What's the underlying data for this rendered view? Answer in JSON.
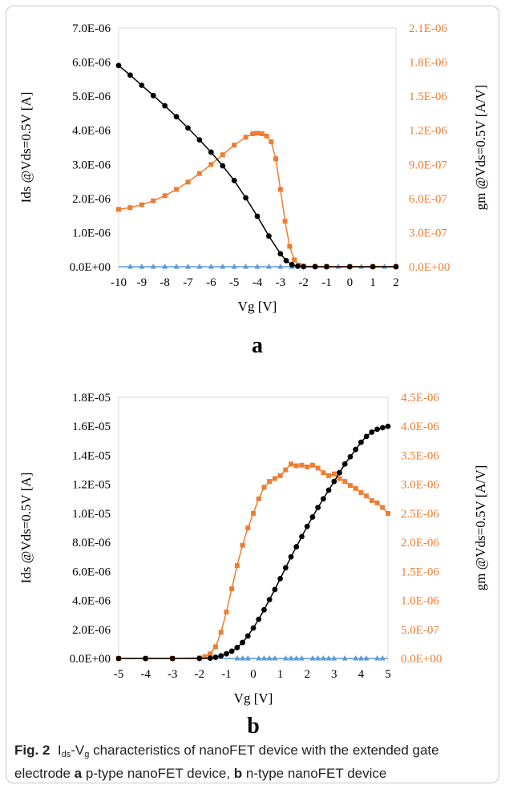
{
  "figure": {
    "caption": {
      "fig_label": "Fig. 2",
      "prefix": "I",
      "ids_subscript": "ds",
      "dash": "-V",
      "vg_subscript": "g",
      "text1": " characteristics of nanoFET device with the extended gate electrode ",
      "label_a": "a",
      "text2": " p-type nanoFET device, ",
      "label_b": "b",
      "text3": " n-type nanoFET device"
    }
  },
  "colors": {
    "ids": "#000000",
    "gm": "#ed7d31",
    "ig": "#5b9bd5",
    "axis": "#d9d9d9",
    "right_tick": "#ed7d31"
  },
  "chart_data": [
    {
      "type": "scatter",
      "panel_label": "a",
      "xlabel": "Vg [V]",
      "ylabel": "Ids @Vds=0.5V [A]",
      "y2label": "gm @Vds=0.5V [A/V]",
      "xlim": [
        -10,
        2
      ],
      "ylim": [
        0,
        7e-06
      ],
      "y2lim": [
        0,
        2.1e-06
      ],
      "xticks": [
        -10,
        -9,
        -8,
        -7,
        -6,
        -5,
        -4,
        -3,
        -2,
        -1,
        0,
        1,
        2
      ],
      "yticks": [
        0,
        1e-06,
        2e-06,
        3e-06,
        4e-06,
        5e-06,
        6e-06,
        7e-06
      ],
      "ytick_labels": [
        "0.0E+00",
        "1.0E-06",
        "2.0E-06",
        "3.0E-06",
        "4.0E-06",
        "5.0E-06",
        "6.0E-06",
        "7.0E-06"
      ],
      "y2ticks": [
        0,
        3e-07,
        6e-07,
        9e-07,
        1.2e-06,
        1.5e-06,
        1.8e-06,
        2.1e-06
      ],
      "y2tick_labels": [
        "0.0E+00",
        "3.0E-07",
        "6.0E-07",
        "9.0E-07",
        "1.2E-06",
        "1.5E-06",
        "1.8E-06",
        "2.1E-06"
      ],
      "series": [
        {
          "key": "ids",
          "axis": "left",
          "marker": "circle",
          "x": [
            -10,
            -9.5,
            -9,
            -8.5,
            -8,
            -7.5,
            -7,
            -6.5,
            -6,
            -5.5,
            -5,
            -4.5,
            -4,
            -3.5,
            -3,
            -2.75,
            -2.5,
            -2.25,
            -2,
            -1.5,
            -1,
            0,
            1,
            2
          ],
          "y": [
            5.9e-06,
            5.62e-06,
            5.32e-06,
            5.02e-06,
            4.72e-06,
            4.4e-06,
            4.07e-06,
            3.72e-06,
            3.36e-06,
            2.96e-06,
            2.53e-06,
            2.02e-06,
            1.48e-06,
            9e-07,
            3.8e-07,
            1.8e-07,
            6e-08,
            1.5e-08,
            4e-09,
            1e-09,
            0,
            0,
            0,
            0
          ]
        },
        {
          "key": "gm",
          "axis": "right",
          "marker": "square",
          "x": [
            -10,
            -9.5,
            -9,
            -8.5,
            -8,
            -7.5,
            -7,
            -6.5,
            -6,
            -5.5,
            -5,
            -4.5,
            -4.2,
            -4,
            -3.8,
            -3.6,
            -3.4,
            -3.2,
            -3,
            -2.8,
            -2.6,
            -2.4,
            -2.2,
            -2,
            -1.5,
            -1,
            0,
            1,
            2
          ],
          "y": [
            5.05e-07,
            5.2e-07,
            5.45e-07,
            5.8e-07,
            6.25e-07,
            6.8e-07,
            7.45e-07,
            8.2e-07,
            9e-07,
            9.85e-07,
            1.07e-06,
            1.14e-06,
            1.17e-06,
            1.175e-06,
            1.17e-06,
            1.15e-06,
            1.1e-06,
            9.5e-07,
            6.8e-07,
            4e-07,
            1.8e-07,
            6e-08,
            1.5e-08,
            5e-09,
            3e-09,
            2e-09,
            2e-09,
            2e-09,
            2e-09
          ]
        },
        {
          "key": "ig",
          "axis": "left",
          "marker": "triangle",
          "x": [
            -9.5,
            -9,
            -8.5,
            -8,
            -7.5,
            -7,
            -6.5,
            -6,
            -5.5,
            -5,
            -4.5,
            -4,
            -3.5,
            -3,
            -2.5,
            -2,
            -1.5,
            -1,
            -0.5,
            0,
            0.5,
            1,
            1.5
          ],
          "y": [
            0,
            0,
            0,
            0,
            0,
            0,
            0,
            0,
            0,
            0,
            0,
            0,
            0,
            0,
            0,
            0,
            0,
            0,
            0,
            0,
            0,
            0,
            0
          ]
        }
      ]
    },
    {
      "type": "scatter",
      "panel_label": "b",
      "xlabel": "Vg [V]",
      "ylabel": "Ids @Vds=0.5V [A]",
      "y2label": "gm @Vds=0.5V [A/V]",
      "xlim": [
        -5,
        5
      ],
      "ylim": [
        0,
        1.8e-05
      ],
      "y2lim": [
        0,
        4.5e-06
      ],
      "xticks": [
        -5,
        -4,
        -3,
        -2,
        -1,
        0,
        1,
        2,
        3,
        4,
        5
      ],
      "yticks": [
        0,
        2e-06,
        4e-06,
        6e-06,
        8e-06,
        1e-05,
        1.2e-05,
        1.4e-05,
        1.6e-05,
        1.8e-05
      ],
      "ytick_labels": [
        "0.0E+00",
        "2.0E-06",
        "4.0E-06",
        "6.0E-06",
        "8.0E-06",
        "1.0E-05",
        "1.2E-05",
        "1.4E-05",
        "1.6E-05",
        "1.8E-05"
      ],
      "y2ticks": [
        0,
        5e-07,
        1e-06,
        1.5e-06,
        2e-06,
        2.5e-06,
        3e-06,
        3.5e-06,
        4e-06,
        4.5e-06
      ],
      "y2tick_labels": [
        "0.0E+00",
        "5.0E-07",
        "1.0E-06",
        "1.5E-06",
        "2.0E-06",
        "2.5E-06",
        "3.0E-06",
        "3.5E-06",
        "4.0E-06",
        "4.5E-06"
      ],
      "series": [
        {
          "key": "ids",
          "axis": "left",
          "marker": "circle",
          "x": [
            -5,
            -4,
            -3,
            -2,
            -1.6,
            -1.4,
            -1.2,
            -1.0,
            -0.8,
            -0.6,
            -0.4,
            -0.2,
            0,
            0.2,
            0.4,
            0.6,
            0.8,
            1.0,
            1.2,
            1.4,
            1.6,
            1.8,
            2.0,
            2.2,
            2.4,
            2.6,
            2.8,
            3.0,
            3.2,
            3.4,
            3.6,
            3.8,
            4.0,
            4.2,
            4.4,
            4.6,
            4.8,
            5.0
          ],
          "y": [
            0,
            0,
            0,
            0,
            2e-08,
            8e-08,
            1.8e-07,
            3.2e-07,
            5e-07,
            7.5e-07,
            1.1e-06,
            1.55e-06,
            2.1e-06,
            2.7e-06,
            3.35e-06,
            4.05e-06,
            4.75e-06,
            5.5e-06,
            6.25e-06,
            7e-06,
            7.7e-06,
            8.4e-06,
            9.1e-06,
            9.75e-06,
            1.04e-05,
            1.1e-05,
            1.16e-05,
            1.22e-05,
            1.28e-05,
            1.34e-05,
            1.39e-05,
            1.44e-05,
            1.49e-05,
            1.53e-05,
            1.56e-05,
            1.58e-05,
            1.59e-05,
            1.6e-05
          ]
        },
        {
          "key": "gm",
          "axis": "right",
          "marker": "square",
          "x": [
            -5,
            -4,
            -3,
            -2,
            -1.8,
            -1.6,
            -1.4,
            -1.2,
            -1.0,
            -0.8,
            -0.6,
            -0.4,
            -0.2,
            0,
            0.2,
            0.4,
            0.6,
            0.8,
            1.0,
            1.2,
            1.4,
            1.6,
            1.8,
            2.0,
            2.2,
            2.4,
            2.6,
            2.8,
            3.0,
            3.2,
            3.4,
            3.6,
            3.8,
            4.0,
            4.2,
            4.4,
            4.6,
            4.8,
            5.0
          ],
          "y": [
            0,
            0,
            0,
            1e-08,
            3e-08,
            8e-08,
            2e-07,
            4.5e-07,
            8e-07,
            1.2e-06,
            1.6e-06,
            1.95e-06,
            2.25e-06,
            2.5e-06,
            2.75e-06,
            2.95e-06,
            3.05e-06,
            3.1e-06,
            3.15e-06,
            3.25e-06,
            3.35e-06,
            3.32e-06,
            3.33e-06,
            3.3e-06,
            3.33e-06,
            3.28e-06,
            3.2e-06,
            3.15e-06,
            3.18e-06,
            3.1e-06,
            3.05e-06,
            2.98e-06,
            2.93e-06,
            2.86e-06,
            2.8e-06,
            2.72e-06,
            2.68e-06,
            2.6e-06,
            2.5e-06
          ]
        },
        {
          "key": "ig",
          "axis": "left",
          "marker": "triangle",
          "x": [
            -0.6,
            -0.4,
            -0.2,
            0.2,
            0.4,
            0.6,
            0.8,
            1.2,
            1.4,
            1.6,
            1.8,
            2.2,
            2.4,
            2.6,
            2.8,
            3.0,
            3.4,
            3.8,
            4.0,
            4.2,
            4.6,
            4.8
          ],
          "y": [
            0,
            0,
            0,
            0,
            0,
            0,
            0,
            0,
            0,
            0,
            0,
            0,
            0,
            0,
            0,
            0,
            0,
            0,
            0,
            0,
            0,
            0
          ]
        }
      ]
    }
  ]
}
